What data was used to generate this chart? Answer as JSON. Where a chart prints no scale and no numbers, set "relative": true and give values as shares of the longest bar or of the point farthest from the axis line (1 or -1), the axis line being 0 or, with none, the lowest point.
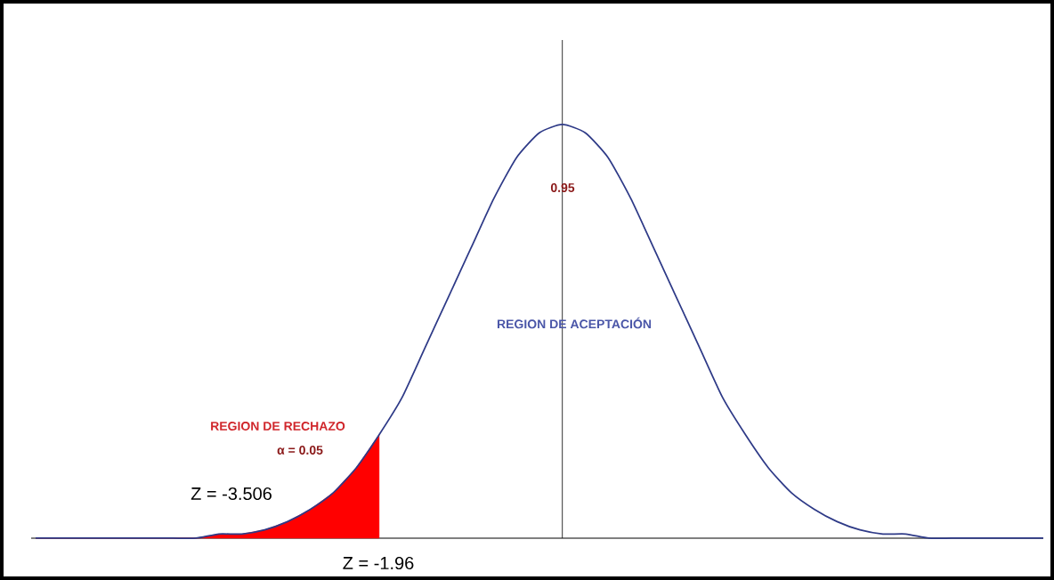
{
  "chart_data": {
    "type": "line",
    "relative": true,
    "categories": [
      null,
      null,
      null,
      null,
      null,
      null,
      null,
      null,
      null,
      null,
      null,
      null,
      null,
      null,
      null,
      null,
      null,
      null,
      null,
      null,
      null,
      null,
      null,
      null,
      null,
      null,
      null,
      null,
      null,
      null,
      null,
      null,
      null,
      null,
      null,
      null,
      null,
      null,
      null,
      null,
      null,
      null,
      null,
      null,
      null
    ],
    "series": [
      {
        "color": "#2e3a87",
        "values": [
          0,
          0,
          0,
          0,
          0,
          0,
          0,
          0,
          0.01,
          0.01,
          0.02,
          0.04,
          0.07,
          0.11,
          0.17,
          0.25,
          0.34,
          0.46,
          0.58,
          0.7,
          0.82,
          0.92,
          0.98,
          1,
          0.98,
          0.92,
          0.82,
          0.7,
          0.58,
          0.46,
          0.34,
          0.25,
          0.17,
          0.11,
          0.07,
          0.04,
          0.02,
          0.01,
          0.01,
          0,
          0,
          0,
          0,
          0,
          0
        ]
      },
      {
        "type": "area",
        "color": "#ff0000",
        "values": [
          0,
          0,
          0,
          0,
          0,
          0,
          0,
          0,
          0.01,
          0.01,
          0.02,
          0.04,
          0.07,
          0.11,
          0.17,
          0.25,
          null,
          null,
          null,
          null,
          null,
          null,
          null,
          null,
          null,
          null,
          null,
          null,
          null,
          null,
          null,
          null,
          null,
          null,
          null,
          null,
          null,
          null,
          null,
          null,
          null,
          null,
          null,
          null,
          null
        ]
      }
    ],
    "annotations": [
      "0.95",
      "REGION DE ACEPTACIÓN",
      "REGION DE RECHAZO",
      "α = 0.05",
      "Z = -3.506",
      "Z = -1.96"
    ]
  }
}
